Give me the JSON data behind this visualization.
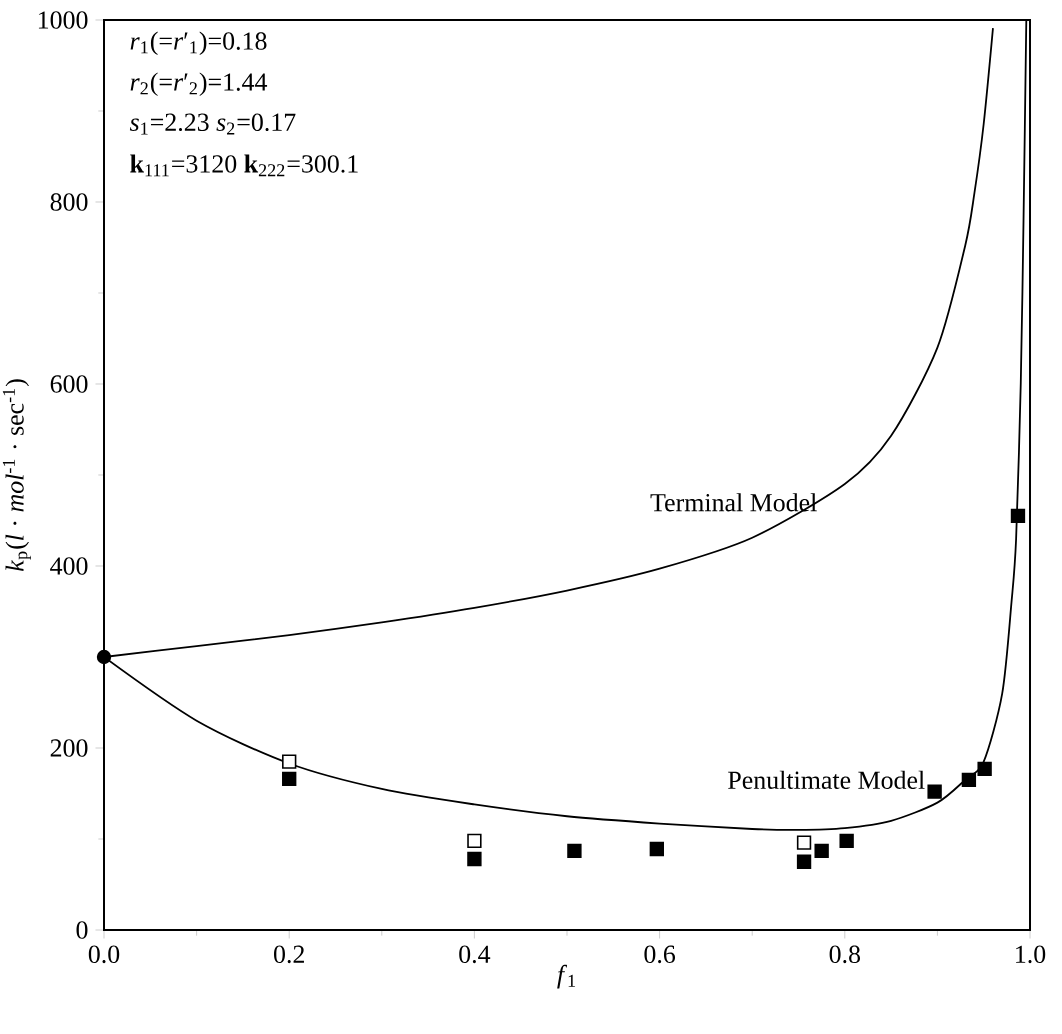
{
  "chart_data": {
    "type": "scatter",
    "xlabel": "*f*$_{1}$",
    "ylabel": "*k*$_{p}$(*l* · *mol*$^{-1}$ · sec$^{-1}$)",
    "xlim": [
      0,
      1
    ],
    "ylim": [
      0,
      1000
    ],
    "xticks": [
      {
        "value": 0,
        "label": "0.0"
      },
      0.2,
      0.4,
      0.6,
      0.8,
      {
        "value": 1,
        "label": "1.0"
      }
    ],
    "yticks": [
      0,
      200,
      400,
      600,
      800,
      1000
    ],
    "series": [
      {
        "type": "line",
        "color": "#000000",
        "marker": "none",
        "x": [
          0,
          0.1,
          0.2,
          0.3,
          0.4,
          0.5,
          0.6,
          0.7,
          0.8,
          0.85,
          0.9,
          0.93,
          0.94,
          0.95,
          0.96
        ],
        "values": [
          300,
          312,
          324,
          338,
          354,
          373,
          397,
          431,
          490,
          543,
          640,
          752,
          810,
          886,
          991
        ]
      },
      {
        "type": "line",
        "color": "#000000",
        "marker": "none",
        "x": [
          0,
          0.1,
          0.2,
          0.3,
          0.4,
          0.5,
          0.6,
          0.7,
          0.75,
          0.8,
          0.85,
          0.9,
          0.93,
          0.95,
          0.97,
          0.98,
          0.985,
          0.99,
          0.993,
          0.996
        ],
        "values": [
          300,
          230,
          183,
          155,
          138,
          125,
          117,
          111,
          110,
          112,
          120,
          140,
          165,
          185,
          260,
          360,
          430,
          600,
          780,
          1000
        ]
      },
      {
        "color": "#000000",
        "marker": "square",
        "x": [
          0.2,
          0.4,
          0.508,
          0.597,
          0.756,
          0.775,
          0.802,
          0.897,
          0.934,
          0.951,
          0.987
        ],
        "values": [
          166,
          78,
          87,
          89,
          75,
          87,
          98,
          152,
          165,
          177,
          455
        ]
      },
      {
        "color": "#ffffff",
        "marker": "square",
        "x": [
          0.2,
          0.4,
          0.756
        ],
        "values": [
          185,
          98,
          96
        ]
      },
      {
        "color": "#000000",
        "marker": "circle",
        "x": [
          0
        ],
        "values": [
          300
        ]
      }
    ],
    "annotations": [
      "*r*$_{1}$(=*r*′$_{1}$)=0.18",
      "*r*$_{2}$(=*r*′$_{2}$)=1.44",
      "*s*$_{1}$=2.23  *s*$_{2}$=0.17",
      "**k**$_{111}$=3120  **k**$_{222}$=300.1",
      "Terminal Model",
      "Penultimate Model"
    ]
  }
}
